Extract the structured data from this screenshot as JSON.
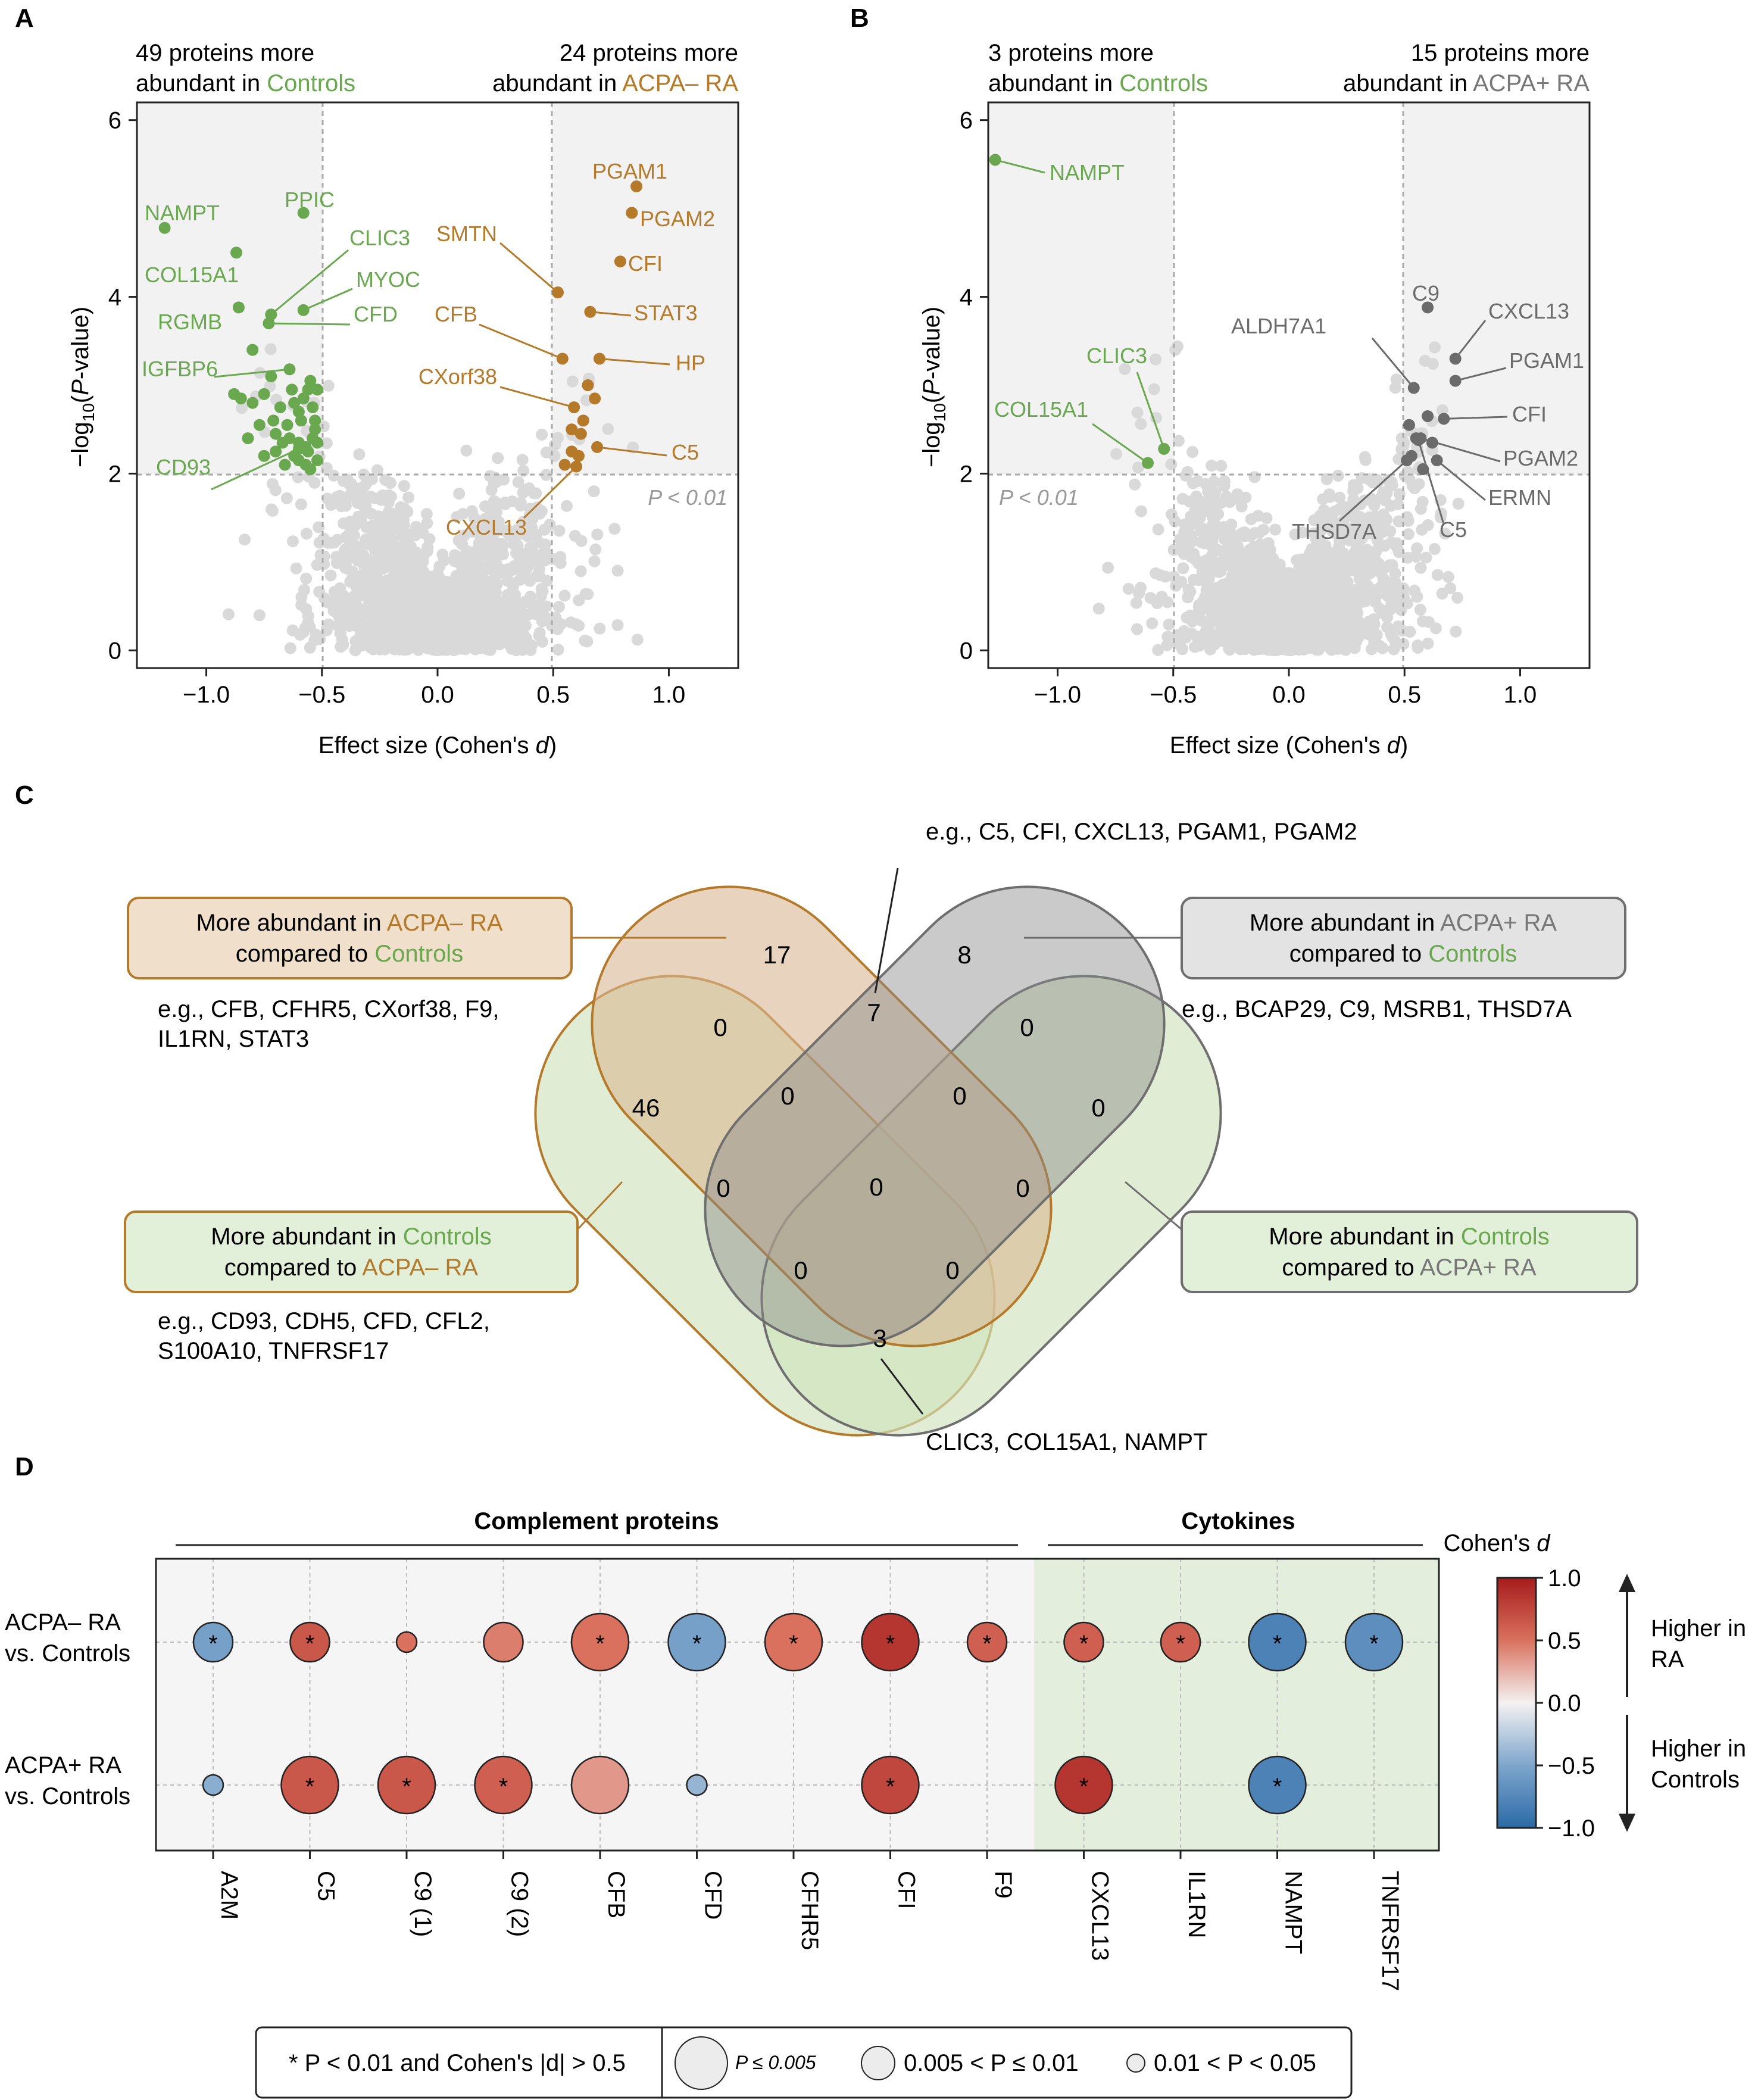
{
  "colors": {
    "green": "#6aa84f",
    "orange": "#b5792a",
    "gray_dark": "#6b6b6b",
    "gray_point": "#d9d9d9",
    "shade": "#f2f2f2",
    "green_shade": "#e3efdc",
    "orange_box": "#f0dfcb",
    "gray_box": "#e3e3e3",
    "green_box": "#e2efd9"
  },
  "chart_data": [
    {
      "panel": "A",
      "type": "scatter",
      "xlabel": "Effect size (Cohen's d)",
      "ylabel": "−log10(P-value)",
      "xlim": [
        -1.3,
        1.3
      ],
      "ylim": [
        -0.2,
        6.2
      ],
      "xticks": [
        "−1.0",
        "−0.5",
        "0.0",
        "0.5",
        "1.0"
      ],
      "yticks": [
        "0",
        "2",
        "4",
        "6"
      ],
      "threshold_label": "P < 0.01",
      "header_left": {
        "line1": "49 proteins more",
        "line2_prefix": "abundant in ",
        "group": "Controls"
      },
      "header_right": {
        "line1": "24 proteins more",
        "line2_prefix": "abundant in ",
        "group": "ACPA– RA"
      },
      "labeled_points": [
        {
          "label": "NAMPT",
          "x": -1.18,
          "y": 4.78,
          "side": "controls"
        },
        {
          "label": "PPIC",
          "x": -0.58,
          "y": 4.95,
          "side": "controls"
        },
        {
          "label": "CLIC3",
          "x": -0.72,
          "y": 3.8,
          "side": "controls"
        },
        {
          "label": "COL15A1",
          "x": -0.87,
          "y": 4.5,
          "side": "controls"
        },
        {
          "label": "MYOC",
          "x": -0.58,
          "y": 3.85,
          "side": "controls"
        },
        {
          "label": "RGMB",
          "x": -0.86,
          "y": 3.88,
          "side": "controls"
        },
        {
          "label": "CFD",
          "x": -0.73,
          "y": 3.7,
          "side": "controls"
        },
        {
          "label": "IGFBP6",
          "x": -0.64,
          "y": 3.18,
          "side": "controls"
        },
        {
          "label": "CD93",
          "x": -0.6,
          "y": 2.28,
          "side": "controls"
        },
        {
          "label": "PGAM1",
          "x": 0.86,
          "y": 5.25,
          "side": "ra"
        },
        {
          "label": "PGAM2",
          "x": 0.84,
          "y": 4.95,
          "side": "ra"
        },
        {
          "label": "SMTN",
          "x": 0.52,
          "y": 4.05,
          "side": "ra"
        },
        {
          "label": "CFI",
          "x": 0.79,
          "y": 4.4,
          "side": "ra"
        },
        {
          "label": "CFB",
          "x": 0.54,
          "y": 3.3,
          "side": "ra"
        },
        {
          "label": "STAT3",
          "x": 0.66,
          "y": 3.83,
          "side": "ra"
        },
        {
          "label": "HP",
          "x": 0.7,
          "y": 3.3,
          "side": "ra"
        },
        {
          "label": "CXorf38",
          "x": 0.59,
          "y": 2.75,
          "side": "ra"
        },
        {
          "label": "C5",
          "x": 0.69,
          "y": 2.3,
          "side": "ra"
        },
        {
          "label": "CXCL13",
          "x": 0.6,
          "y": 2.08,
          "side": "ra"
        }
      ]
    },
    {
      "panel": "B",
      "type": "scatter",
      "xlabel": "Effect size (Cohen's d)",
      "ylabel": "−log10(P-value)",
      "xlim": [
        -1.3,
        1.3
      ],
      "ylim": [
        -0.2,
        6.2
      ],
      "xticks": [
        "−1.0",
        "−0.5",
        "0.0",
        "0.5",
        "1.0"
      ],
      "yticks": [
        "0",
        "2",
        "4",
        "6"
      ],
      "threshold_label": "P < 0.01",
      "header_left": {
        "line1": "3 proteins more",
        "line2_prefix": "abundant in ",
        "group": "Controls"
      },
      "header_right": {
        "line1": "15 proteins more",
        "line2_prefix": "abundant in ",
        "group": "ACPA+ RA"
      },
      "labeled_points": [
        {
          "label": "NAMPT",
          "x": -1.27,
          "y": 5.55,
          "side": "controls"
        },
        {
          "label": "CLIC3",
          "x": -0.54,
          "y": 2.28,
          "side": "controls"
        },
        {
          "label": "COL15A1",
          "x": -0.61,
          "y": 2.12,
          "side": "controls"
        },
        {
          "label": "C9",
          "x": 0.6,
          "y": 3.88,
          "side": "ra"
        },
        {
          "label": "ALDH7A1",
          "x": 0.54,
          "y": 2.97,
          "side": "ra"
        },
        {
          "label": "CXCL13",
          "x": 0.72,
          "y": 3.3,
          "side": "ra"
        },
        {
          "label": "PGAM1",
          "x": 0.72,
          "y": 3.05,
          "side": "ra"
        },
        {
          "label": "CFI",
          "x": 0.67,
          "y": 2.62,
          "side": "ra"
        },
        {
          "label": "PGAM2",
          "x": 0.57,
          "y": 2.4,
          "side": "ra"
        },
        {
          "label": "ERMN",
          "x": 0.64,
          "y": 2.15,
          "side": "ra"
        },
        {
          "label": "THSD7A",
          "x": 0.51,
          "y": 2.15,
          "side": "ra"
        },
        {
          "label": "C5",
          "x": 0.56,
          "y": 2.38,
          "side": "ra"
        }
      ]
    },
    {
      "panel": "D",
      "type": "bubble",
      "title_groups": [
        "Complement proteins",
        "Cytokines"
      ],
      "categories": [
        "A2M",
        "C5",
        "C9 (1)",
        "C9 (2)",
        "CFB",
        "CFD",
        "CFHR5",
        "CFI",
        "F9",
        "CXCL13",
        "IL1RN",
        "NAMPT",
        "TNFRSF17"
      ],
      "rows": [
        "ACPA– RA vs. Controls",
        "ACPA+ RA vs. Controls"
      ],
      "row_labels": [
        [
          "ACPA– RA",
          "vs. Controls"
        ],
        [
          "ACPA+ RA",
          "vs. Controls"
        ]
      ],
      "series": [
        {
          "name": "ACPA– RA vs. Controls",
          "cohens_d": [
            -0.55,
            0.65,
            0.5,
            0.45,
            0.5,
            -0.55,
            0.5,
            0.85,
            0.6,
            0.6,
            0.6,
            -0.8,
            -0.7
          ],
          "size_class": [
            "p2",
            "p2",
            "p3",
            "p2",
            "p1",
            "p1",
            "p1",
            "p1",
            "p2",
            "p2",
            "p2",
            "p1",
            "p1"
          ],
          "significant": [
            true,
            true,
            false,
            false,
            true,
            true,
            true,
            true,
            true,
            true,
            true,
            true,
            true
          ]
        },
        {
          "name": "ACPA+ RA vs. Controls",
          "cohens_d": [
            -0.45,
            0.65,
            0.65,
            0.6,
            0.35,
            -0.4,
            null,
            0.75,
            null,
            0.85,
            null,
            -0.8,
            null
          ],
          "size_class": [
            "p3",
            "p1",
            "p1",
            "p1",
            "p1",
            "p3",
            null,
            "p1",
            null,
            "p1",
            null,
            "p1",
            null
          ],
          "significant": [
            false,
            true,
            true,
            true,
            false,
            false,
            false,
            true,
            false,
            true,
            false,
            true,
            false
          ]
        }
      ],
      "colorbar": {
        "title": "Cohen's d",
        "ticks": [
          "1.0",
          "0.5",
          "0.0",
          "−0.5",
          "−1.0"
        ],
        "range": [
          -1.0,
          1.0
        ],
        "high_label": [
          "Higher in",
          "RA"
        ],
        "low_label": [
          "Higher in",
          "Controls"
        ]
      },
      "legend": {
        "star_text": "* P < 0.01 and Cohen's |d| > 0.5",
        "sizes": [
          "P ≤ 0.005",
          "0.005 < P ≤ 0.01",
          "0.01 < P < 0.05"
        ]
      }
    }
  ],
  "panel_labels": [
    "A",
    "B",
    "C",
    "D"
  ],
  "venn": {
    "counts": {
      "a_only": "17",
      "b_only": "8",
      "c_only": "46",
      "d_only": "0",
      "ab": "7",
      "ac": "0",
      "bd": "0",
      "a_bc": "0",
      "b_ad": "0",
      "abcd": "0",
      "bc": "0",
      "ad": "0",
      "ac_d": "0",
      "bc_d": "0",
      "cd": "3"
    },
    "top_note": "e.g., C5, CFI, CXCL13, PGAM1, PGAM2",
    "bottom_note": "CLIC3, COL15A1, NAMPT",
    "box_tl": {
      "line1_prefix": "More abundant in ",
      "line1_group": "ACPA– RA",
      "line2_prefix": "compared to ",
      "line2_group": "Controls"
    },
    "box_tr": {
      "line1_prefix": "More abundant in ",
      "line1_group": "ACPA+ RA",
      "line2_prefix": "compared to ",
      "line2_group": "Controls"
    },
    "box_bl": {
      "line1_prefix": "More abundant in ",
      "line1_group": "Controls",
      "line2_prefix": "compared to ",
      "line2_group": "ACPA– RA"
    },
    "box_br": {
      "line1_prefix": "More abundant in ",
      "line1_group": "Controls",
      "line2_prefix": "compared to ",
      "line2_group": "ACPA+ RA"
    },
    "examples_tl": [
      "e.g., CFB, CFHR5, CXorf38, F9,",
      "IL1RN, STAT3"
    ],
    "examples_tr": [
      "e.g., BCAP29, C9, MSRB1, THSD7A"
    ],
    "examples_bl": [
      "e.g., CD93, CDH5, CFD, CFL2,",
      "S100A10, TNFRSF17"
    ]
  }
}
